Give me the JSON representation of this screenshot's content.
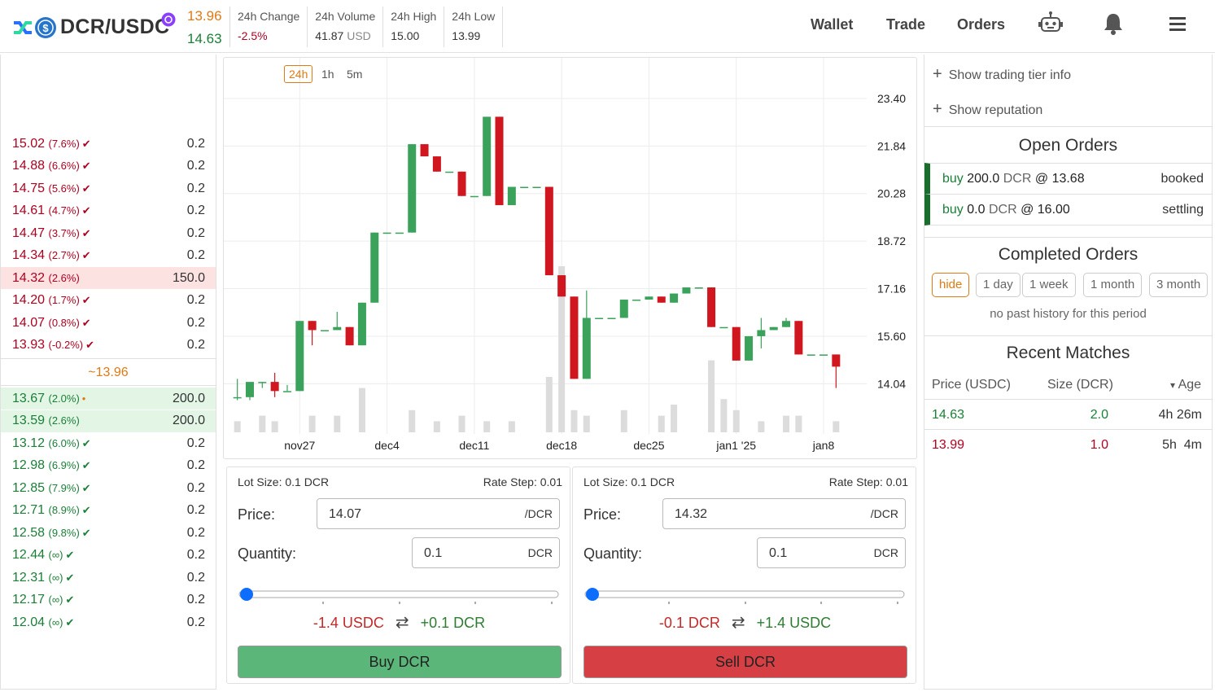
{
  "header": {
    "pair": "DCR/USDC",
    "sell_price": "13.96",
    "buy_price": "14.63",
    "stats": [
      {
        "label": "24h Change",
        "value": "-2.5%",
        "unit": ""
      },
      {
        "label": "24h Volume",
        "value": "41.87",
        "unit": "USD"
      },
      {
        "label": "24h High",
        "value": "15.00",
        "unit": ""
      },
      {
        "label": "24h Low",
        "value": "13.99",
        "unit": ""
      }
    ],
    "nav": {
      "wallet": "Wallet",
      "trade": "Trade",
      "orders": "Orders"
    }
  },
  "book": {
    "sells": [
      {
        "rate": "15.02",
        "pct": "(7.6%)",
        "qty": "0.2",
        "mark": "✔"
      },
      {
        "rate": "14.88",
        "pct": "(6.6%)",
        "qty": "0.2",
        "mark": "✔"
      },
      {
        "rate": "14.75",
        "pct": "(5.6%)",
        "qty": "0.2",
        "mark": "✔"
      },
      {
        "rate": "14.61",
        "pct": "(4.7%)",
        "qty": "0.2",
        "mark": "✔"
      },
      {
        "rate": "14.47",
        "pct": "(3.7%)",
        "qty": "0.2",
        "mark": "✔"
      },
      {
        "rate": "14.34",
        "pct": "(2.7%)",
        "qty": "0.2",
        "mark": "✔"
      },
      {
        "rate": "14.32",
        "pct": "(2.6%)",
        "qty": "150.0",
        "mark": "",
        "highlight": true
      },
      {
        "rate": "14.20",
        "pct": "(1.7%)",
        "qty": "0.2",
        "mark": "✔"
      },
      {
        "rate": "14.07",
        "pct": "(0.8%)",
        "qty": "0.2",
        "mark": "✔"
      },
      {
        "rate": "13.93",
        "pct": "(-0.2%)",
        "qty": "0.2",
        "mark": "✔"
      }
    ],
    "mid": "~13.96",
    "buys": [
      {
        "rate": "13.67",
        "pct": "(2.0%)",
        "qty": "200.0",
        "mark": "•",
        "highlight": true
      },
      {
        "rate": "13.59",
        "pct": "(2.6%)",
        "qty": "200.0",
        "mark": "",
        "highlight": true
      },
      {
        "rate": "13.12",
        "pct": "(6.0%)",
        "qty": "0.2",
        "mark": "✔"
      },
      {
        "rate": "12.98",
        "pct": "(6.9%)",
        "qty": "0.2",
        "mark": "✔"
      },
      {
        "rate": "12.85",
        "pct": "(7.9%)",
        "qty": "0.2",
        "mark": "✔"
      },
      {
        "rate": "12.71",
        "pct": "(8.9%)",
        "qty": "0.2",
        "mark": "✔"
      },
      {
        "rate": "12.58",
        "pct": "(9.8%)",
        "qty": "0.2",
        "mark": "✔"
      },
      {
        "rate": "12.44",
        "pct": "(∞)",
        "qty": "0.2",
        "mark": "✔"
      },
      {
        "rate": "12.31",
        "pct": "(∞)",
        "qty": "0.2",
        "mark": "✔"
      },
      {
        "rate": "12.17",
        "pct": "(∞)",
        "qty": "0.2",
        "mark": "✔"
      },
      {
        "rate": "12.04",
        "pct": "(∞)",
        "qty": "0.2",
        "mark": "✔"
      }
    ]
  },
  "chart": {
    "timeframes": [
      "24h",
      "1h",
      "5m"
    ],
    "active_timeframe": "24h",
    "colors": {
      "up": "#3aa25b",
      "down": "#d0161f",
      "volume": "#dcdcdc"
    }
  },
  "chart_data": {
    "type": "candlestick",
    "ylim": [
      12.5,
      24.2
    ],
    "y_ticks": [
      23.4,
      21.84,
      20.28,
      18.72,
      17.16,
      15.6,
      14.04
    ],
    "x_tick_labels": [
      "nov27",
      "dec4",
      "dec11",
      "dec18",
      "dec25",
      "jan1 '25",
      "jan8"
    ],
    "x_tick_index": [
      5,
      12,
      19,
      26,
      33,
      40,
      47
    ],
    "candles": [
      {
        "o": 13.6,
        "h": 14.2,
        "l": 13.5,
        "c": 13.6,
        "v": 0.2
      },
      {
        "o": 13.6,
        "h": 14.0,
        "l": 13.5,
        "c": 14.1,
        "v": 0
      },
      {
        "o": 14.1,
        "h": 14.1,
        "l": 13.9,
        "c": 14.1,
        "v": 0.3
      },
      {
        "o": 14.1,
        "h": 14.4,
        "l": 13.6,
        "c": 13.8,
        "v": 0.2
      },
      {
        "o": 13.8,
        "h": 14.0,
        "l": 13.8,
        "c": 13.8,
        "v": 0
      },
      {
        "o": 13.8,
        "h": 16.1,
        "l": 13.8,
        "c": 16.1,
        "v": 0
      },
      {
        "o": 16.1,
        "h": 16.1,
        "l": 15.3,
        "c": 15.8,
        "v": 0.3
      },
      {
        "o": 15.8,
        "h": 15.8,
        "l": 15.8,
        "c": 15.8,
        "v": 0
      },
      {
        "o": 15.8,
        "h": 16.4,
        "l": 15.8,
        "c": 15.9,
        "v": 0.3
      },
      {
        "o": 15.9,
        "h": 15.9,
        "l": 15.3,
        "c": 15.3,
        "v": 0
      },
      {
        "o": 15.3,
        "h": 16.7,
        "l": 15.3,
        "c": 16.7,
        "v": 0.8
      },
      {
        "o": 16.7,
        "h": 19.0,
        "l": 16.7,
        "c": 19.0,
        "v": 0
      },
      {
        "o": 19.0,
        "h": 19.0,
        "l": 19.0,
        "c": 19.0,
        "v": 0
      },
      {
        "o": 19.0,
        "h": 19.0,
        "l": 19.0,
        "c": 19.0,
        "v": 0
      },
      {
        "o": 19.0,
        "h": 21.9,
        "l": 19.0,
        "c": 21.9,
        "v": 0.4
      },
      {
        "o": 21.9,
        "h": 21.9,
        "l": 21.5,
        "c": 21.5,
        "v": 0
      },
      {
        "o": 21.5,
        "h": 21.5,
        "l": 21.0,
        "c": 21.0,
        "v": 0.2
      },
      {
        "o": 21.0,
        "h": 21.0,
        "l": 21.0,
        "c": 21.0,
        "v": 0
      },
      {
        "o": 21.0,
        "h": 21.0,
        "l": 20.2,
        "c": 20.2,
        "v": 0.3
      },
      {
        "o": 20.2,
        "h": 20.2,
        "l": 20.2,
        "c": 20.2,
        "v": 0
      },
      {
        "o": 20.2,
        "h": 22.8,
        "l": 20.2,
        "c": 22.8,
        "v": 0.2
      },
      {
        "o": 22.8,
        "h": 22.8,
        "l": 19.9,
        "c": 19.9,
        "v": 0
      },
      {
        "o": 19.9,
        "h": 20.5,
        "l": 19.9,
        "c": 20.5,
        "v": 0.2
      },
      {
        "o": 20.5,
        "h": 20.5,
        "l": 20.5,
        "c": 20.5,
        "v": 0
      },
      {
        "o": 20.5,
        "h": 20.5,
        "l": 20.5,
        "c": 20.5,
        "v": 0
      },
      {
        "o": 20.5,
        "h": 20.5,
        "l": 17.6,
        "c": 17.6,
        "v": 1.0
      },
      {
        "o": 17.6,
        "h": 17.6,
        "l": 16.9,
        "c": 16.9,
        "v": 3.0
      },
      {
        "o": 16.9,
        "h": 16.9,
        "l": 14.2,
        "c": 14.2,
        "v": 0.4
      },
      {
        "o": 14.2,
        "h": 17.1,
        "l": 14.2,
        "c": 16.2,
        "v": 0.3
      },
      {
        "o": 16.2,
        "h": 16.2,
        "l": 16.2,
        "c": 16.2,
        "v": 0
      },
      {
        "o": 16.2,
        "h": 16.2,
        "l": 16.2,
        "c": 16.2,
        "v": 0
      },
      {
        "o": 16.2,
        "h": 16.8,
        "l": 16.2,
        "c": 16.8,
        "v": 0.4
      },
      {
        "o": 16.8,
        "h": 16.8,
        "l": 16.8,
        "c": 16.8,
        "v": 0
      },
      {
        "o": 16.8,
        "h": 16.9,
        "l": 16.8,
        "c": 16.9,
        "v": 0
      },
      {
        "o": 16.9,
        "h": 16.9,
        "l": 16.7,
        "c": 16.7,
        "v": 0.3
      },
      {
        "o": 16.7,
        "h": 17.0,
        "l": 16.7,
        "c": 17.0,
        "v": 0.5
      },
      {
        "o": 17.0,
        "h": 17.2,
        "l": 17.0,
        "c": 17.2,
        "v": 0
      },
      {
        "o": 17.2,
        "h": 17.2,
        "l": 17.2,
        "c": 17.2,
        "v": 0
      },
      {
        "o": 17.2,
        "h": 17.2,
        "l": 15.9,
        "c": 15.9,
        "v": 1.3
      },
      {
        "o": 15.9,
        "h": 15.9,
        "l": 15.9,
        "c": 15.9,
        "v": 0.6
      },
      {
        "o": 15.9,
        "h": 15.9,
        "l": 14.8,
        "c": 14.8,
        "v": 0.4
      },
      {
        "o": 14.8,
        "h": 15.6,
        "l": 14.8,
        "c": 15.6,
        "v": 0
      },
      {
        "o": 15.6,
        "h": 16.2,
        "l": 15.2,
        "c": 15.8,
        "v": 0.2
      },
      {
        "o": 15.8,
        "h": 15.9,
        "l": 15.8,
        "c": 15.9,
        "v": 0
      },
      {
        "o": 15.9,
        "h": 16.2,
        "l": 15.9,
        "c": 16.1,
        "v": 0.3
      },
      {
        "o": 16.1,
        "h": 16.1,
        "l": 15.0,
        "c": 15.0,
        "v": 0.3
      },
      {
        "o": 15.0,
        "h": 15.0,
        "l": 15.0,
        "c": 15.0,
        "v": 0
      },
      {
        "o": 15.0,
        "h": 15.0,
        "l": 15.0,
        "c": 15.0,
        "v": 0
      },
      {
        "o": 15.0,
        "h": 15.0,
        "l": 13.9,
        "c": 14.6,
        "v": 0.2
      }
    ]
  },
  "buy_form": {
    "lot": "Lot Size: 0.1 DCR",
    "step": "Rate Step: 0.01",
    "price_label": "Price:",
    "price": "14.07",
    "price_unit": "/DCR",
    "qty_label": "Quantity:",
    "qty": "0.1",
    "qty_unit": "DCR",
    "slider_fraction": 0,
    "conv_out": "-1.4 USDC",
    "conv_in": "+0.1 DCR",
    "button": "Buy DCR"
  },
  "sell_form": {
    "lot": "Lot Size: 0.1 DCR",
    "step": "Rate Step: 0.01",
    "price_label": "Price:",
    "price": "14.32",
    "price_unit": "/DCR",
    "qty_label": "Quantity:",
    "qty": "0.1",
    "qty_unit": "DCR",
    "slider_fraction": 0,
    "conv_out": "-0.1 DCR",
    "conv_in": "+1.4 USDC",
    "button": "Sell DCR"
  },
  "right": {
    "show_tier": "Show trading tier info",
    "show_rep": "Show reputation",
    "open_title": "Open Orders",
    "open_orders": [
      {
        "side": "buy",
        "qty": "200.0",
        "unit": "DCR",
        "rate": "@ 13.68",
        "status": "booked"
      },
      {
        "side": "buy",
        "qty": "0.0",
        "unit": "DCR",
        "rate": "@ 16.00",
        "status": "settling"
      }
    ],
    "completed_title": "Completed Orders",
    "periods": [
      "hide",
      "1 day",
      "1 week",
      "1 month",
      "3 month"
    ],
    "no_history": "no past history for this period",
    "matches_title": "Recent Matches",
    "match_headers": {
      "price": "Price (USDC)",
      "size": "Size (DCR)",
      "age": "Age",
      "sort_mark": "▾"
    },
    "matches": [
      {
        "price": "14.63",
        "size": "2.0",
        "age": "4h 26m",
        "side": "buy"
      },
      {
        "price": "13.99",
        "size": "1.0",
        "age": "5h  4m",
        "side": "sell"
      }
    ]
  }
}
